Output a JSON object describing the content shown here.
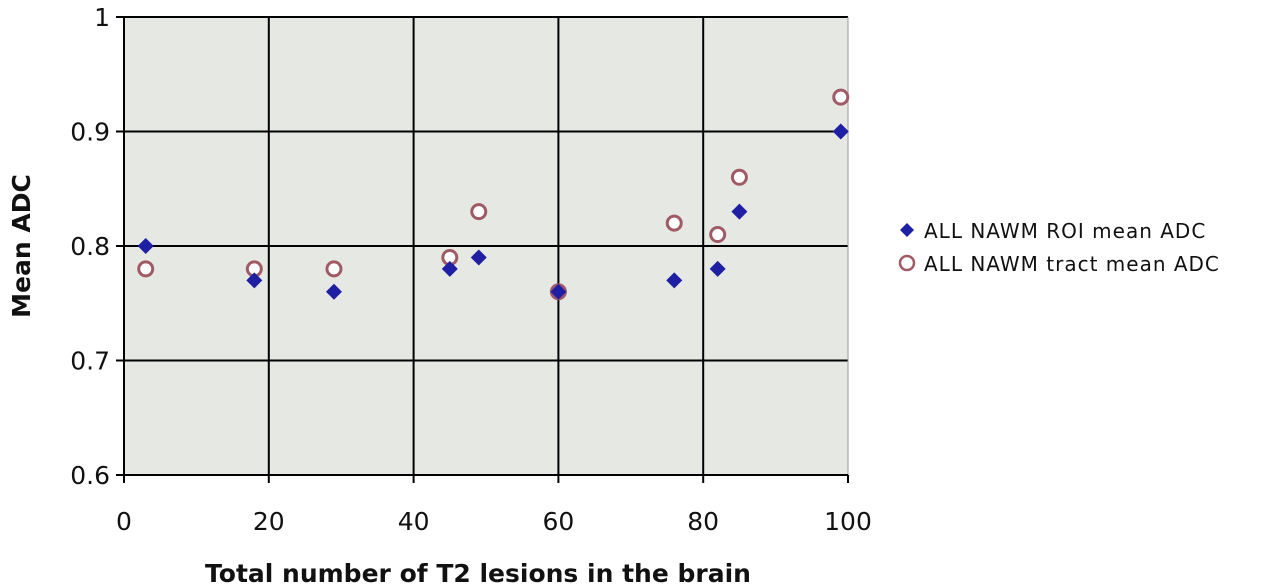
{
  "chart_data": {
    "type": "scatter",
    "xlabel": "Total number of T2 lesions in the brain",
    "ylabel": "Mean ADC",
    "xlim": [
      0,
      100
    ],
    "ylim": [
      0.6,
      1
    ],
    "x_ticks": [
      0,
      20,
      40,
      60,
      80,
      100
    ],
    "y_ticks": [
      0.6,
      0.7,
      0.8,
      0.9,
      1
    ],
    "x_tick_labels": [
      "0",
      "20",
      "40",
      "60",
      "80",
      "100"
    ],
    "y_tick_labels": [
      "0.6",
      "0.7",
      "0.8",
      "0.9",
      "1"
    ],
    "grid": true,
    "legend": "right",
    "background": "#e6e8e4",
    "series": [
      {
        "name": "ALL NAWM ROI mean ADC",
        "marker": "diamond",
        "color": "#1f1fa3",
        "points": [
          {
            "x": 3,
            "y": 0.8
          },
          {
            "x": 18,
            "y": 0.77
          },
          {
            "x": 29,
            "y": 0.76
          },
          {
            "x": 45,
            "y": 0.78
          },
          {
            "x": 49,
            "y": 0.79
          },
          {
            "x": 60,
            "y": 0.76
          },
          {
            "x": 76,
            "y": 0.77
          },
          {
            "x": 82,
            "y": 0.78
          },
          {
            "x": 85,
            "y": 0.83
          },
          {
            "x": 99,
            "y": 0.9
          }
        ]
      },
      {
        "name": "ALL NAWM tract mean ADC",
        "marker": "open-circle",
        "color": "#a05a66",
        "points": [
          {
            "x": 3,
            "y": 0.78
          },
          {
            "x": 18,
            "y": 0.78
          },
          {
            "x": 29,
            "y": 0.78
          },
          {
            "x": 45,
            "y": 0.79
          },
          {
            "x": 49,
            "y": 0.83
          },
          {
            "x": 60,
            "y": 0.76
          },
          {
            "x": 76,
            "y": 0.82
          },
          {
            "x": 82,
            "y": 0.81
          },
          {
            "x": 85,
            "y": 0.86
          },
          {
            "x": 99,
            "y": 0.93
          }
        ]
      }
    ]
  }
}
